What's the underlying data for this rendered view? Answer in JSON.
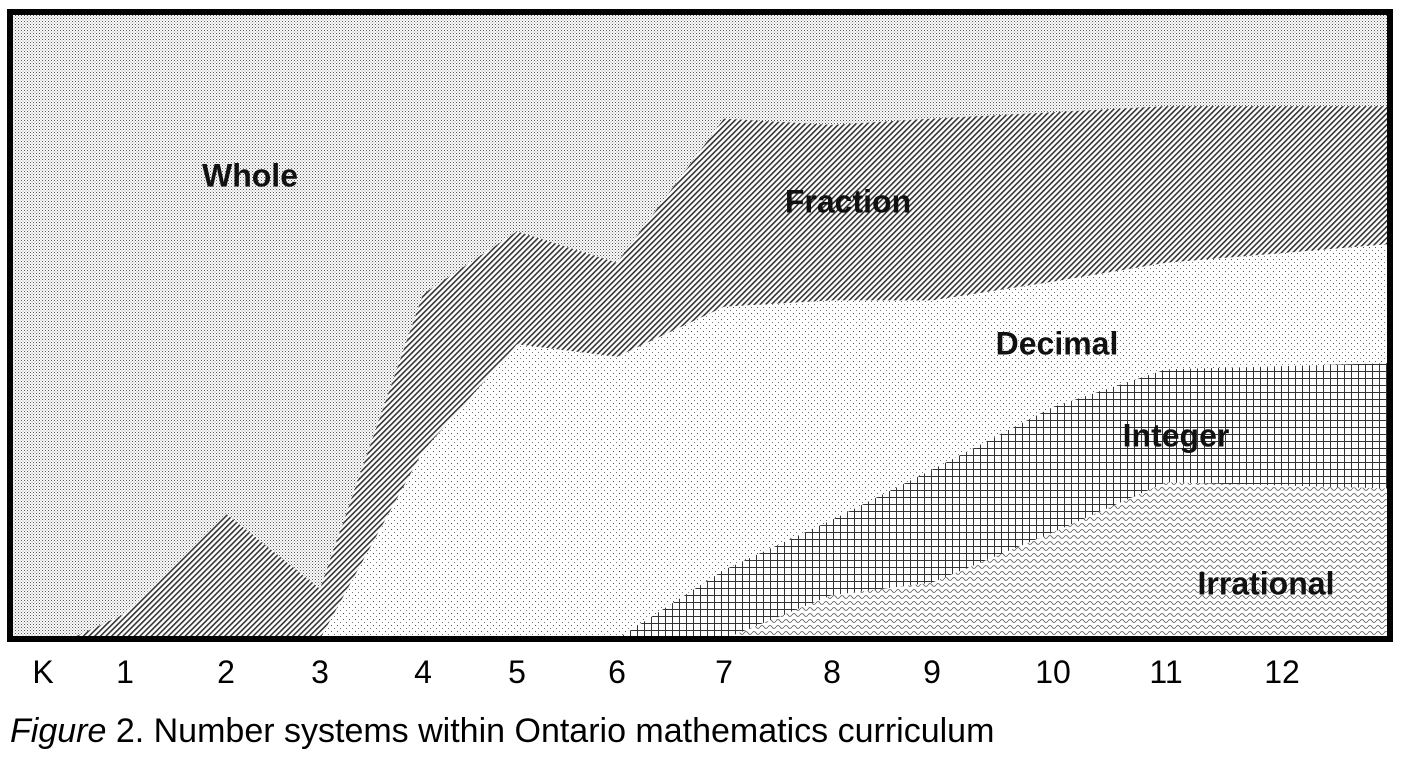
{
  "caption": {
    "label": "Figure",
    "text": " 2. Number systems within Ontario mathematics curriculum"
  },
  "chart_data": {
    "type": "area",
    "title": "",
    "xlabel": "",
    "ylabel": "",
    "x": [
      "K",
      "1",
      "2",
      "3",
      "4",
      "5",
      "6",
      "7",
      "8",
      "9",
      "10",
      "11",
      "12"
    ],
    "ylim": [
      0,
      1
    ],
    "grid": false,
    "legend": "none",
    "series": [
      {
        "name": "Whole",
        "pattern": "fine-dots",
        "values": [
          1,
          1,
          1,
          1,
          1,
          1,
          1,
          1,
          1,
          1,
          1,
          1,
          1
        ]
      },
      {
        "name": "Fraction",
        "pattern": "diagonal-hatch",
        "values": [
          0,
          0.04,
          0.2,
          0.08,
          0.55,
          0.65,
          0.6,
          0.83,
          0.82,
          0.83,
          0.84,
          0.85,
          0.85
        ]
      },
      {
        "name": "Decimal",
        "pattern": "sparse-dots",
        "values": [
          0,
          0,
          0,
          0,
          0.3,
          0.47,
          0.45,
          0.53,
          0.54,
          0.54,
          0.57,
          0.6,
          0.63
        ]
      },
      {
        "name": "Integer",
        "pattern": "grid",
        "values": [
          0,
          0,
          0,
          0,
          0,
          0,
          0,
          0.11,
          0.19,
          0.27,
          0.37,
          0.43,
          0.44
        ]
      },
      {
        "name": "Irrational",
        "pattern": "wave",
        "values": [
          0,
          0,
          0,
          0,
          0,
          0,
          0,
          0,
          0.07,
          0.09,
          0.17,
          0.25,
          0.24
        ]
      }
    ]
  }
}
